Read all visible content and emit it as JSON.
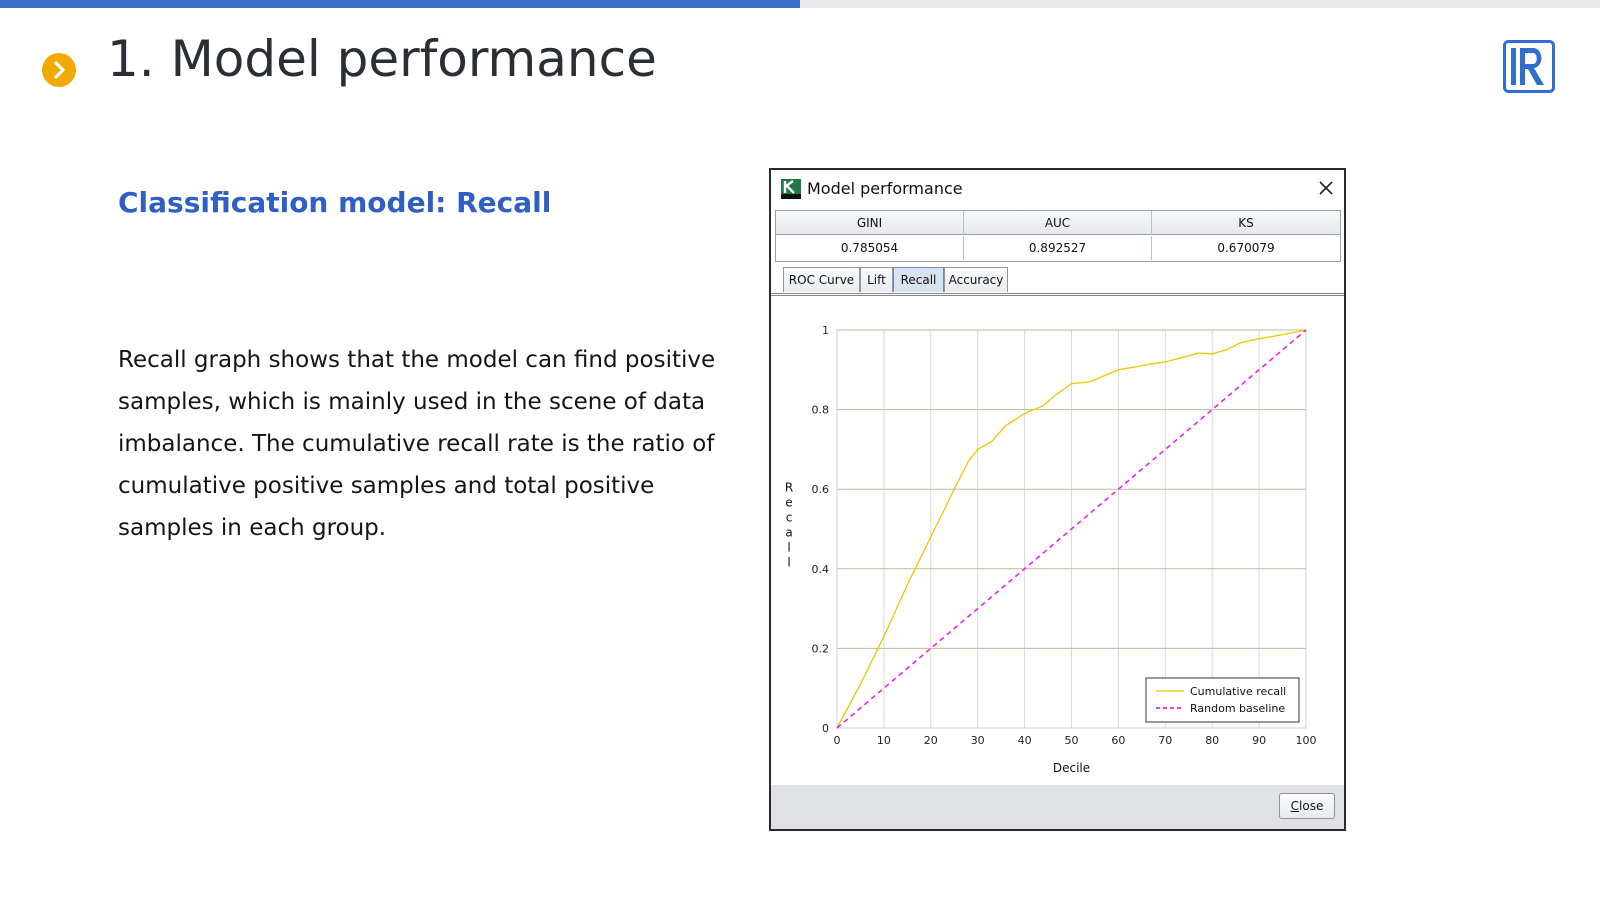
{
  "slide": {
    "title": "1. Model performance",
    "subtitle": "Classification model: Recall",
    "body": "Recall graph shows that the model can find positive samples, which is mainly used in the scene of data imbalance. The cumulative recall rate is the ratio of cumulative positive samples and total positive samples in each group.",
    "progress_fraction": 0.5,
    "colors": {
      "accent": "#3d6fc7",
      "bullet": "#f2a900",
      "subtitle": "#2f5fc4"
    },
    "icons": {
      "bullet": "chevron-right-icon",
      "logo": "r-logo-icon"
    }
  },
  "dialog": {
    "title": "Model performance",
    "app_icon": "k-app-icon",
    "close_icon": "close-icon",
    "metrics": {
      "headers": [
        "GINI",
        "AUC",
        "KS"
      ],
      "values": [
        "0.785054",
        "0.892527",
        "0.670079"
      ]
    },
    "tabs": [
      {
        "label": "ROC Curve",
        "active": false
      },
      {
        "label": "Lift",
        "active": false
      },
      {
        "label": "Recall",
        "active": true
      },
      {
        "label": "Accuracy",
        "active": false
      }
    ],
    "close_button": {
      "mnemonic": "C",
      "rest": "lose"
    }
  },
  "chart_data": {
    "type": "line",
    "title": "",
    "xlabel": "Decile",
    "ylabel": "Recall",
    "xlim": [
      0,
      100
    ],
    "ylim": [
      0,
      1
    ],
    "x_ticks": [
      "0",
      "10",
      "20",
      "30",
      "40",
      "50",
      "60",
      "70",
      "80",
      "90",
      "100"
    ],
    "y_ticks": [
      "0",
      "0.2",
      "0.4",
      "0.6",
      "0.8",
      "1"
    ],
    "grid": true,
    "legend_position": "bottom-right",
    "series": [
      {
        "name": "Cumulative recall",
        "color": "#f2c400",
        "style": "solid",
        "x": [
          0,
          5,
          10,
          15,
          20,
          25,
          28,
          30,
          33,
          36,
          40,
          44,
          47,
          50,
          54,
          57,
          60,
          64,
          67,
          70,
          74,
          77,
          80,
          83,
          86,
          90,
          95,
          100
        ],
        "y": [
          0,
          0.11,
          0.23,
          0.36,
          0.48,
          0.6,
          0.67,
          0.7,
          0.72,
          0.76,
          0.79,
          0.81,
          0.84,
          0.865,
          0.87,
          0.885,
          0.9,
          0.908,
          0.915,
          0.92,
          0.932,
          0.942,
          0.94,
          0.95,
          0.968,
          0.978,
          0.988,
          1.0
        ]
      },
      {
        "name": "Random baseline",
        "color": "#ee22ee",
        "style": "dashed",
        "x": [
          0,
          100
        ],
        "y": [
          0,
          1
        ]
      }
    ]
  }
}
